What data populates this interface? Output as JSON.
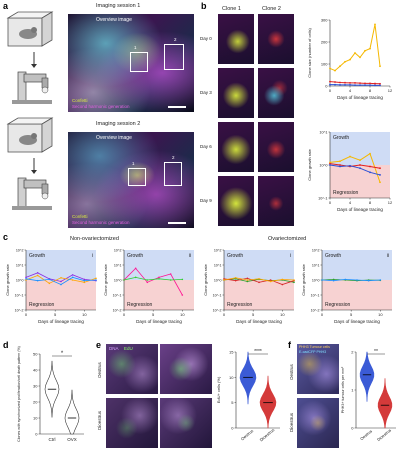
{
  "panel_labels": [
    "a",
    "b",
    "c",
    "d",
    "e",
    "f"
  ],
  "panel_a": {
    "session1_title": "Imaging session 1",
    "session2_title": "Imaging session 2",
    "overview_label": "Overview image",
    "inset_labels": [
      "1",
      "2"
    ],
    "legend_confetti": "Confetti",
    "legend_shg": "Second harmonic generation"
  },
  "panel_b": {
    "clone1_title": "Clone 1",
    "clone2_title": "Clone 2",
    "days": [
      "Day 0",
      "Day 3",
      "Day 6",
      "Day 9"
    ]
  },
  "panel_c": {
    "group1_title": "Non-ovariectomized",
    "group2_title": "Ovariectomized",
    "growth_label": "Growth",
    "regression_label": "Regression",
    "subpanel_ids": [
      "i",
      "ii"
    ]
  },
  "panel_d": {},
  "panel_e": {
    "row_labels": [
      "Oestrus",
      "Dioestrus"
    ],
    "legend_dapi": "DNA",
    "legend_edu": "EdU"
  },
  "panel_f": {
    "row_labels": [
      "Oestrus",
      "Dioestrus"
    ],
    "legend_line1": "PHH3 Tumour cells",
    "legend_line2": "E-cadCFP PHH3"
  },
  "chart_data": [
    {
      "id": "b-clone-size",
      "type": "line",
      "xlabel": "Days of lineage tracing",
      "ylabel": "Clone size (number of cells)",
      "xlim": [
        0,
        12
      ],
      "ylim": [
        0,
        300
      ],
      "xticks": [
        0,
        4,
        8,
        12
      ],
      "yticks": [
        0,
        100,
        200,
        300
      ],
      "x": [
        0,
        1,
        2,
        3,
        4,
        5,
        6,
        7,
        8,
        9,
        10
      ],
      "series": [
        {
          "color": "#f5b800",
          "values": [
            80,
            70,
            90,
            110,
            120,
            150,
            130,
            160,
            170,
            280,
            90
          ]
        },
        {
          "color": "#e02020",
          "values": [
            20,
            18,
            16,
            15,
            14,
            14,
            13,
            12,
            12,
            11,
            10
          ]
        },
        {
          "color": "#2a4fd6",
          "values": [
            6,
            6,
            5,
            5,
            5,
            4,
            4,
            4,
            4,
            3,
            3
          ]
        }
      ]
    },
    {
      "id": "b-growth-rate",
      "type": "line",
      "xlabel": "Days of lineage tracing",
      "ylabel": "Clone growth rate",
      "growth_label": "Growth",
      "regression_label": "Regression",
      "xlim": [
        0,
        12
      ],
      "ylim": [
        0.1,
        10
      ],
      "xticks": [
        0,
        4,
        8,
        12
      ],
      "yticks": [
        "10^1",
        "10^0",
        "10^-1"
      ],
      "x": [
        0,
        2,
        4,
        6,
        8,
        10
      ],
      "series": [
        {
          "color": "#f5b800",
          "values": [
            1.2,
            1.3,
            1.8,
            1.4,
            2.2,
            0.3
          ]
        },
        {
          "color": "#e02020",
          "values": [
            1.1,
            1.0,
            0.9,
            1.0,
            0.9,
            0.8
          ]
        },
        {
          "color": "#2a4fd6",
          "values": [
            1.0,
            0.9,
            0.95,
            0.8,
            0.6,
            0.5
          ]
        }
      ]
    },
    {
      "id": "c-i",
      "type": "line",
      "xlabel": "Days of lineage tracing",
      "ylabel": "Clone growth rate",
      "xticks": [
        0,
        5,
        10
      ],
      "yticks": [
        "10^2",
        "10^1",
        "10^0",
        "10^-1",
        "10^-2"
      ],
      "x": [
        0,
        2,
        4,
        6,
        8,
        10,
        12
      ],
      "series": [
        {
          "color": "#8a2be2",
          "values": [
            1.5,
            3,
            1.2,
            0.8,
            2.2,
            1.1,
            0.9
          ]
        },
        {
          "color": "#ffa500",
          "values": [
            1.0,
            2.0,
            0.6,
            1.4,
            1.0,
            0.7,
            1.3
          ]
        },
        {
          "color": "#1e90ff",
          "values": [
            1.2,
            0.9,
            1.1,
            0.5,
            1.5,
            0.9,
            1.0
          ]
        }
      ]
    },
    {
      "id": "c-ii",
      "type": "line",
      "xlabel": "Days of lineage tracing",
      "ylabel": "Clone growth rate",
      "xticks": [
        0,
        5,
        10
      ],
      "yticks": [
        "10^2",
        "10^1",
        "10^0",
        "10^-1",
        "10^-2"
      ],
      "x": [
        0,
        2,
        4,
        6,
        8,
        10
      ],
      "series": [
        {
          "color": "#ff1493",
          "values": [
            1.0,
            6.0,
            0.7,
            1.5,
            2.5,
            0.1
          ]
        },
        {
          "color": "#32cd32",
          "values": [
            1.0,
            1.5,
            1.0,
            1.2,
            1.0,
            1.1
          ]
        }
      ]
    },
    {
      "id": "c-iii",
      "type": "line",
      "xlabel": "Days of lineage tracing",
      "ylabel": "Clone growth rate",
      "xticks": [
        0,
        5,
        10
      ],
      "yticks": [
        "10^2",
        "10^1",
        "10^0",
        "10^-1",
        "10^-2"
      ],
      "x": [
        0,
        2,
        4,
        6,
        8,
        10,
        12
      ],
      "series": [
        {
          "color": "#2ca02c",
          "values": [
            1.0,
            1.2,
            0.8,
            1.1,
            0.9,
            1.0,
            0.7
          ]
        },
        {
          "color": "#d62728",
          "values": [
            1.2,
            0.9,
            1.3,
            0.7,
            1.0,
            0.5,
            0.9
          ]
        },
        {
          "color": "#ffa500",
          "values": [
            1.0,
            1.4,
            1.0,
            1.2,
            0.8,
            1.1,
            1.0
          ]
        }
      ]
    },
    {
      "id": "c-iv",
      "type": "line",
      "xlabel": "Days of lineage tracing",
      "ylabel": "Clone growth rate",
      "xticks": [
        0,
        5,
        10
      ],
      "yticks": [
        "10^2",
        "10^1",
        "10^0",
        "10^-1",
        "10^-2"
      ],
      "x": [
        0,
        2,
        4,
        6,
        8,
        10
      ],
      "series": [
        {
          "color": "#2ca02c",
          "values": [
            1.0,
            1.1,
            1.0,
            0.9,
            1.0,
            0.95
          ]
        },
        {
          "color": "#1e90ff",
          "values": [
            1.0,
            0.9,
            1.1,
            1.0,
            0.9,
            1.0
          ]
        }
      ]
    },
    {
      "id": "d",
      "type": "violin",
      "ylabel": "Clones with synchronized proliferation/cell death pattern (%)",
      "categories": [
        "Ctrl",
        "OVX"
      ],
      "ylim": [
        0,
        50
      ],
      "yticks": [
        0,
        10,
        20,
        30,
        40,
        50
      ],
      "medians": [
        28,
        10
      ],
      "significance": "*"
    },
    {
      "id": "e",
      "type": "violin",
      "ylabel": "EdU+ cells (%)",
      "categories": [
        "Oestrus",
        "Dioestrus"
      ],
      "colors": [
        "#3b5bd6",
        "#d43a3a"
      ],
      "ylim": [
        0,
        15
      ],
      "yticks": [
        0,
        5,
        10,
        15
      ],
      "medians": [
        10,
        5
      ],
      "significance": "****"
    },
    {
      "id": "f",
      "type": "violin",
      "ylabel": "PHH3+ tumour cells per mm²",
      "categories": [
        "Oestrus",
        "Dioestrus"
      ],
      "colors": [
        "#3b5bd6",
        "#d43a3a"
      ],
      "ylim": [
        0,
        2
      ],
      "yticks": [
        0,
        1,
        2
      ],
      "medians": [
        1.4,
        0.6
      ],
      "significance": "**"
    }
  ]
}
